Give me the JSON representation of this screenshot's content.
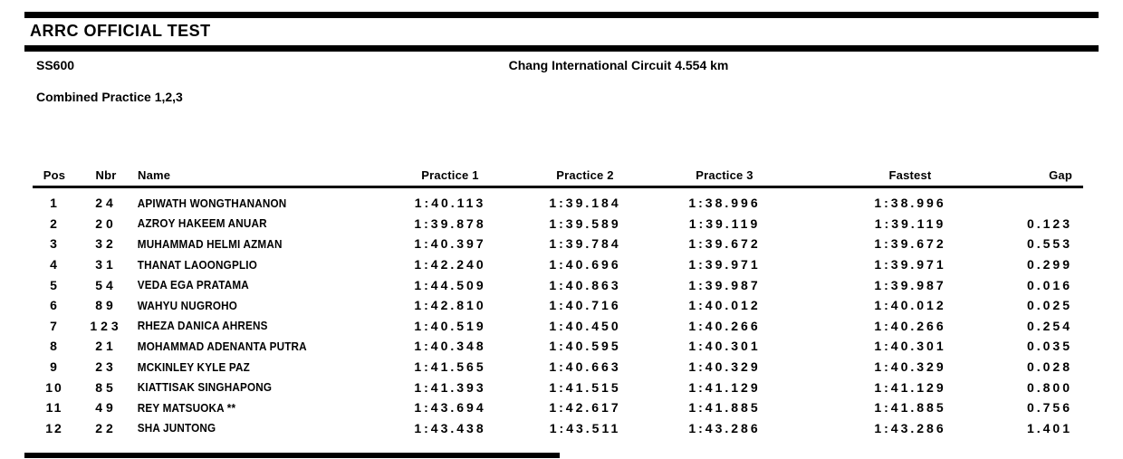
{
  "header": {
    "title": "ARRC OFFICIAL TEST",
    "category": "SS600",
    "circuit": "Chang International Circuit 4.554 km",
    "session": "Combined Practice 1,2,3"
  },
  "table": {
    "columns": [
      "Pos",
      "Nbr",
      "Name",
      "Practice 1",
      "Practice 2",
      "Practice 3",
      "Fastest",
      "Gap"
    ],
    "rows": [
      [
        "1",
        "24",
        "APIWATH WONGTHANANON",
        "1:40.113",
        "1:39.184",
        "1:38.996",
        "1:38.996",
        ""
      ],
      [
        "2",
        "20",
        "AZROY HAKEEM ANUAR",
        "1:39.878",
        "1:39.589",
        "1:39.119",
        "1:39.119",
        "0.123"
      ],
      [
        "3",
        "32",
        "MUHAMMAD HELMI AZMAN",
        "1:40.397",
        "1:39.784",
        "1:39.672",
        "1:39.672",
        "0.553"
      ],
      [
        "4",
        "31",
        "THANAT LAOONGPLIO",
        "1:42.240",
        "1:40.696",
        "1:39.971",
        "1:39.971",
        "0.299"
      ],
      [
        "5",
        "54",
        "VEDA EGA PRATAMA",
        "1:44.509",
        "1:40.863",
        "1:39.987",
        "1:39.987",
        "0.016"
      ],
      [
        "6",
        "89",
        "WAHYU NUGROHO",
        "1:42.810",
        "1:40.716",
        "1:40.012",
        "1:40.012",
        "0.025"
      ],
      [
        "7",
        "123",
        "RHEZA DANICA AHRENS",
        "1:40.519",
        "1:40.450",
        "1:40.266",
        "1:40.266",
        "0.254"
      ],
      [
        "8",
        "21",
        "MOHAMMAD ADENANTA PUTRA",
        "1:40.348",
        "1:40.595",
        "1:40.301",
        "1:40.301",
        "0.035"
      ],
      [
        "9",
        "23",
        "MCKINLEY KYLE PAZ",
        "1:41.565",
        "1:40.663",
        "1:40.329",
        "1:40.329",
        "0.028"
      ],
      [
        "10",
        "85",
        "KIATTISAK SINGHAPONG",
        "1:41.393",
        "1:41.515",
        "1:41.129",
        "1:41.129",
        "0.800"
      ],
      [
        "11",
        "49",
        "REY MATSUOKA **",
        "1:43.694",
        "1:42.617",
        "1:41.885",
        "1:41.885",
        "0.756"
      ],
      [
        "12",
        "22",
        "SHA JUNTONG",
        "1:43.438",
        "1:43.511",
        "1:43.286",
        "1:43.286",
        "1.401"
      ]
    ]
  },
  "colors": {
    "text": "#000000",
    "background": "#ffffff",
    "rule": "#000000"
  }
}
